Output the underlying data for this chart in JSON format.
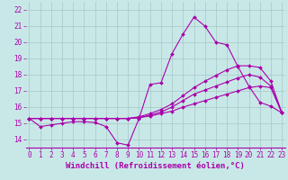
{
  "xlabel": "Windchill (Refroidissement éolien,°C)",
  "background_color": "#c8e8e8",
  "grid_color": "#a8c8c8",
  "line_color": "#aa00aa",
  "xticks": [
    0,
    1,
    2,
    3,
    4,
    5,
    6,
    7,
    8,
    9,
    10,
    11,
    12,
    13,
    14,
    15,
    16,
    17,
    18,
    19,
    20,
    21,
    22,
    23
  ],
  "yticks": [
    14,
    15,
    16,
    17,
    18,
    19,
    20,
    21,
    22
  ],
  "xlim": [
    -0.3,
    23.3
  ],
  "ylim": [
    13.5,
    22.5
  ],
  "series": [
    [
      15.3,
      14.8,
      14.9,
      15.0,
      15.1,
      15.1,
      15.05,
      14.8,
      13.8,
      13.65,
      15.3,
      17.4,
      17.5,
      19.3,
      20.5,
      21.55,
      21.0,
      20.0,
      19.85,
      18.5,
      17.3,
      16.3,
      16.05,
      15.65
    ],
    [
      15.3,
      15.3,
      15.3,
      15.3,
      15.3,
      15.3,
      15.3,
      15.3,
      15.3,
      15.3,
      15.35,
      15.45,
      15.6,
      15.75,
      16.0,
      16.2,
      16.4,
      16.6,
      16.8,
      17.0,
      17.2,
      17.3,
      17.2,
      15.65
    ],
    [
      15.3,
      15.3,
      15.3,
      15.3,
      15.3,
      15.3,
      15.3,
      15.3,
      15.3,
      15.3,
      15.35,
      15.5,
      15.7,
      16.0,
      16.4,
      16.8,
      17.05,
      17.3,
      17.55,
      17.8,
      18.0,
      17.85,
      17.3,
      15.65
    ],
    [
      15.3,
      15.3,
      15.3,
      15.3,
      15.3,
      15.3,
      15.3,
      15.3,
      15.3,
      15.3,
      15.4,
      15.6,
      15.85,
      16.2,
      16.7,
      17.2,
      17.6,
      17.95,
      18.3,
      18.55,
      18.55,
      18.45,
      17.6,
      15.65
    ]
  ],
  "marker": "D",
  "markersize": 2.0,
  "linewidth": 0.8,
  "xlabel_fontsize": 6.5,
  "tick_fontsize": 5.5
}
